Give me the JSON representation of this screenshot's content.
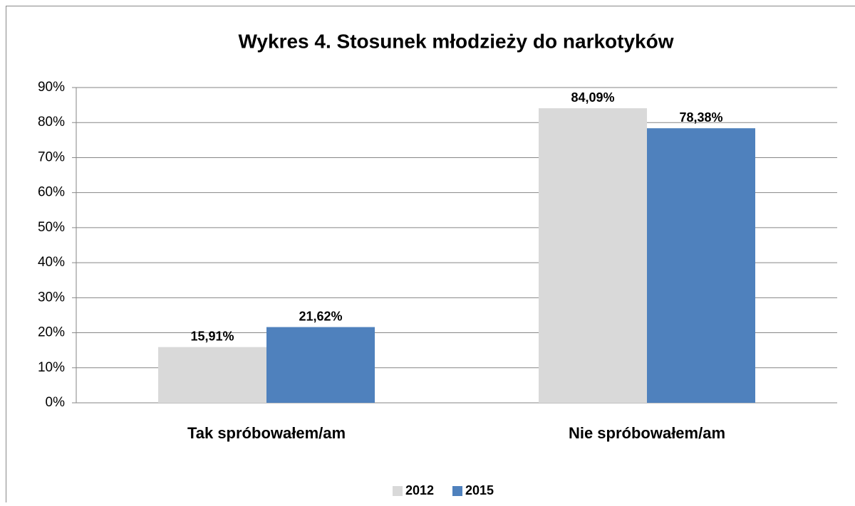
{
  "chart_data": {
    "type": "bar",
    "title": "Wykres 4. Stosunek młodzieży do narkotyków",
    "categories": [
      "Tak spróbowałem/am",
      "Nie spróbowałem/am"
    ],
    "series": [
      {
        "name": "2012",
        "color": "#d9d9d9",
        "values": [
          15.91,
          84.09
        ],
        "value_labels": [
          "15,91%",
          "84,09%"
        ]
      },
      {
        "name": "2015",
        "color": "#4f81bd",
        "values": [
          21.62,
          78.38
        ],
        "value_labels": [
          "21,62%",
          "78,38%"
        ]
      }
    ],
    "ylim": [
      0,
      90
    ],
    "yticks": [
      {
        "value": 0,
        "label": "0%"
      },
      {
        "value": 10,
        "label": "10%"
      },
      {
        "value": 20,
        "label": "20%"
      },
      {
        "value": 30,
        "label": "30%"
      },
      {
        "value": 40,
        "label": "40%"
      },
      {
        "value": 50,
        "label": "50%"
      },
      {
        "value": 60,
        "label": "60%"
      },
      {
        "value": 70,
        "label": "70%"
      },
      {
        "value": 80,
        "label": "80%"
      },
      {
        "value": 90,
        "label": "90%"
      }
    ],
    "grid": true,
    "legend": "bottom"
  }
}
